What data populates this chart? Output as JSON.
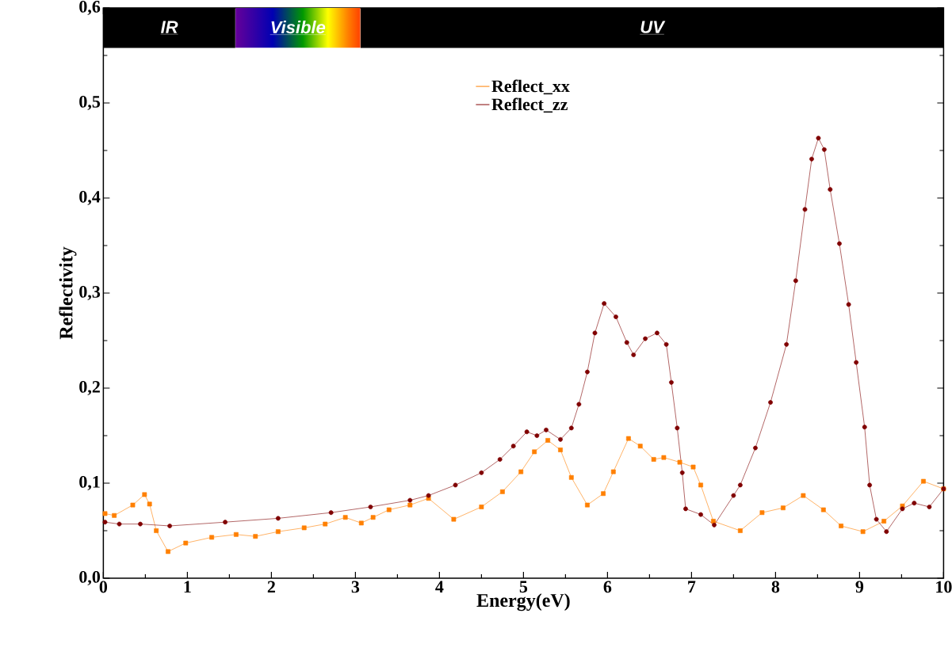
{
  "chart_data": {
    "type": "line",
    "xlabel": "Energy(eV)",
    "ylabel": "Reflectivity",
    "xlim": [
      0,
      10
    ],
    "ylim": [
      0,
      0.6
    ],
    "xticks": [
      0,
      1,
      2,
      3,
      4,
      5,
      6,
      7,
      8,
      9,
      10
    ],
    "yticks": [
      {
        "value": 0,
        "label": "0,0"
      },
      {
        "value": 0.1,
        "label": "0,1"
      },
      {
        "value": 0.2,
        "label": "0,2"
      },
      {
        "value": 0.3,
        "label": "0,3"
      },
      {
        "value": 0.4,
        "label": "0,4"
      },
      {
        "value": 0.5,
        "label": "0,5"
      },
      {
        "value": 0.6,
        "label": "0,6"
      }
    ],
    "legend": "top",
    "bands": [
      {
        "axis": "x",
        "from": 0,
        "to": 1.57,
        "label": "IR",
        "color": "#000000"
      },
      {
        "axis": "x",
        "from": 1.57,
        "to": 3.06,
        "label": "Visible"
      },
      {
        "axis": "x",
        "from": 3.06,
        "to": 10,
        "label": "UV",
        "color": "#000000"
      }
    ],
    "series": [
      {
        "name": "Reflect_xx",
        "color": "#ff8000",
        "marker": "square",
        "x": [
          0.02,
          0.13,
          0.35,
          0.49,
          0.55,
          0.63,
          0.77,
          0.98,
          1.29,
          1.58,
          1.81,
          2.08,
          2.39,
          2.64,
          2.88,
          3.07,
          3.21,
          3.4,
          3.65,
          3.87,
          4.17,
          4.5,
          4.75,
          4.97,
          5.13,
          5.29,
          5.44,
          5.57,
          5.76,
          5.95,
          6.07,
          6.25,
          6.39,
          6.55,
          6.67,
          6.86,
          7.02,
          7.11,
          7.26,
          7.58,
          7.84,
          8.09,
          8.33,
          8.57,
          8.78,
          9.04,
          9.29,
          9.51,
          9.76,
          10.0
        ],
        "values": [
          0.068,
          0.066,
          0.077,
          0.088,
          0.078,
          0.05,
          0.028,
          0.037,
          0.043,
          0.046,
          0.044,
          0.049,
          0.053,
          0.057,
          0.064,
          0.058,
          0.064,
          0.072,
          0.077,
          0.084,
          0.062,
          0.075,
          0.091,
          0.112,
          0.133,
          0.145,
          0.135,
          0.106,
          0.077,
          0.089,
          0.112,
          0.147,
          0.139,
          0.125,
          0.127,
          0.122,
          0.117,
          0.098,
          0.06,
          0.05,
          0.069,
          0.074,
          0.087,
          0.072,
          0.055,
          0.049,
          0.06,
          0.076,
          0.102,
          0.094
        ]
      },
      {
        "name": "Reflect_zz",
        "color": "#800000",
        "marker": "circle",
        "x": [
          0.02,
          0.19,
          0.44,
          0.79,
          1.45,
          2.08,
          2.71,
          3.18,
          3.65,
          3.87,
          4.19,
          4.5,
          4.72,
          4.88,
          5.04,
          5.16,
          5.27,
          5.44,
          5.57,
          5.66,
          5.76,
          5.85,
          5.96,
          6.1,
          6.23,
          6.31,
          6.45,
          6.59,
          6.7,
          6.76,
          6.83,
          6.89,
          6.93,
          7.11,
          7.27,
          7.5,
          7.58,
          7.76,
          7.94,
          8.13,
          8.24,
          8.35,
          8.43,
          8.51,
          8.58,
          8.65,
          8.76,
          8.87,
          8.96,
          9.06,
          9.12,
          9.2,
          9.32,
          9.51,
          9.65,
          9.83,
          10.0
        ],
        "values": [
          0.059,
          0.057,
          0.057,
          0.055,
          0.059,
          0.063,
          0.069,
          0.075,
          0.082,
          0.087,
          0.098,
          0.111,
          0.125,
          0.139,
          0.154,
          0.15,
          0.156,
          0.146,
          0.158,
          0.183,
          0.217,
          0.258,
          0.289,
          0.275,
          0.248,
          0.235,
          0.252,
          0.258,
          0.246,
          0.206,
          0.158,
          0.111,
          0.073,
          0.067,
          0.056,
          0.087,
          0.098,
          0.137,
          0.185,
          0.246,
          0.313,
          0.388,
          0.441,
          0.463,
          0.451,
          0.409,
          0.352,
          0.288,
          0.227,
          0.159,
          0.098,
          0.062,
          0.049,
          0.073,
          0.079,
          0.075,
          0.094
        ]
      }
    ]
  }
}
